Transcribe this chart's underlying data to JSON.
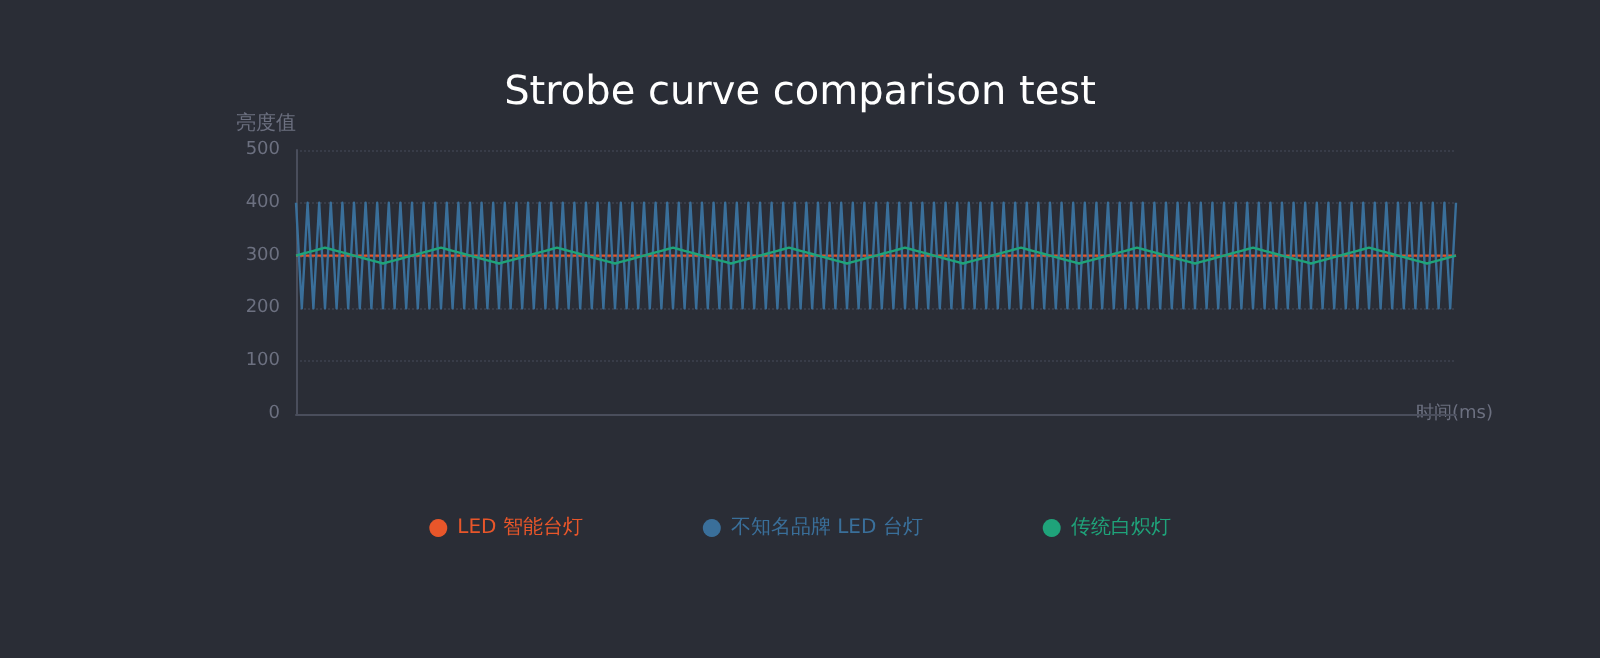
{
  "chart_data": {
    "type": "line",
    "title": "Strobe curve comparison test",
    "ylabel": "亮度值",
    "xlabel": "时间(ms)",
    "ylim": [
      0,
      500
    ],
    "yticks": [
      0,
      100,
      200,
      300,
      400,
      500
    ],
    "tick_labels": "y",
    "grid": "y",
    "legend": "bottom",
    "line_style": "solid",
    "categories": [
      null,
      null,
      null,
      null,
      null,
      null,
      null,
      null,
      null,
      null,
      null,
      null,
      null,
      null,
      null,
      null,
      null,
      null,
      null,
      null,
      null,
      null,
      null,
      null,
      null,
      null,
      null,
      null,
      null,
      null,
      null,
      null,
      null,
      null,
      null,
      null,
      null,
      null,
      null,
      null,
      null,
      null,
      null,
      null,
      null,
      null,
      null,
      null,
      null,
      null,
      null,
      null,
      null,
      null,
      null,
      null,
      null,
      null,
      null,
      null,
      null,
      null,
      null,
      null,
      null,
      null,
      null,
      null,
      null,
      null,
      null,
      null,
      null,
      null,
      null,
      null,
      null,
      null,
      null,
      null,
      null,
      null,
      null,
      null,
      null,
      null,
      null,
      null,
      null,
      null,
      null,
      null,
      null,
      null,
      null,
      null,
      null,
      null,
      null,
      null,
      null,
      null,
      null,
      null,
      null,
      null,
      null,
      null,
      null,
      null,
      null,
      null,
      null,
      null,
      null,
      null,
      null,
      null,
      null,
      null,
      null,
      null,
      null,
      null,
      null,
      null,
      null,
      null,
      null,
      null,
      null,
      null,
      null,
      null,
      null,
      null,
      null,
      null,
      null,
      null,
      null,
      null,
      null,
      null,
      null,
      null,
      null,
      null,
      null,
      null,
      null,
      null,
      null,
      null,
      null,
      null,
      null,
      null,
      null,
      null,
      null,
      null,
      null,
      null,
      null,
      null,
      null,
      null,
      null,
      null,
      null,
      null,
      null,
      null,
      null,
      null,
      null,
      null,
      null,
      null,
      null,
      null,
      null,
      null,
      null,
      null,
      null,
      null,
      null,
      null,
      null,
      null,
      null,
      null,
      null,
      null,
      null,
      null,
      null,
      null,
      null
    ],
    "series": [
      {
        "name": "LED 智能台灯",
        "color": "#e8562a",
        "values": [
          300,
          300,
          300,
          300,
          300,
          300,
          300,
          300,
          300,
          300,
          300,
          300,
          300,
          300,
          300,
          300,
          300,
          300,
          300,
          300,
          300,
          300,
          300,
          300,
          300,
          300,
          300,
          300,
          300,
          300,
          300,
          300,
          300,
          300,
          300,
          300,
          300,
          300,
          300,
          300,
          300,
          300,
          300,
          300,
          300,
          300,
          300,
          300,
          300,
          300,
          300,
          300,
          300,
          300,
          300,
          300,
          300,
          300,
          300,
          300,
          300,
          300,
          300,
          300,
          300,
          300,
          300,
          300,
          300,
          300,
          300,
          300,
          300,
          300,
          300,
          300,
          300,
          300,
          300,
          300,
          300,
          300,
          300,
          300,
          300,
          300,
          300,
          300,
          300,
          300,
          300,
          300,
          300,
          300,
          300,
          300,
          300,
          300,
          300,
          300,
          300,
          300,
          300,
          300,
          300,
          300,
          300,
          300,
          300,
          300,
          300,
          300,
          300,
          300,
          300,
          300,
          300,
          300,
          300,
          300,
          300,
          300,
          300,
          300,
          300,
          300,
          300,
          300,
          300,
          300,
          300,
          300,
          300,
          300,
          300,
          300,
          300,
          300,
          300,
          300,
          300,
          300,
          300,
          300,
          300,
          300,
          300,
          300,
          300,
          300,
          300,
          300,
          300,
          300,
          300,
          300,
          300,
          300,
          300,
          300,
          300,
          300,
          300,
          300,
          300,
          300,
          300,
          300,
          300,
          300,
          300,
          300,
          300,
          300,
          300,
          300,
          300,
          300,
          300,
          300,
          300,
          300,
          300,
          300,
          300,
          300,
          300,
          300,
          300,
          300,
          300,
          300,
          300,
          300,
          300,
          300,
          300,
          300,
          300,
          300,
          300
        ]
      },
      {
        "name": "不知名品牌 LED 台灯",
        "color": "#3a6f9a",
        "values": [
          400,
          200,
          400,
          200,
          400,
          200,
          400,
          200,
          400,
          200,
          400,
          200,
          400,
          200,
          400,
          200,
          400,
          200,
          400,
          200,
          400,
          200,
          400,
          200,
          400,
          200,
          400,
          200,
          400,
          200,
          400,
          200,
          400,
          200,
          400,
          200,
          400,
          200,
          400,
          200,
          400,
          200,
          400,
          200,
          400,
          200,
          400,
          200,
          400,
          200,
          400,
          200,
          400,
          200,
          400,
          200,
          400,
          200,
          400,
          200,
          400,
          200,
          400,
          200,
          400,
          200,
          400,
          200,
          400,
          200,
          400,
          200,
          400,
          200,
          400,
          200,
          400,
          200,
          400,
          200,
          400,
          200,
          400,
          200,
          400,
          200,
          400,
          200,
          400,
          200,
          400,
          200,
          400,
          200,
          400,
          200,
          400,
          200,
          400,
          200,
          400,
          200,
          400,
          200,
          400,
          200,
          400,
          200,
          400,
          200,
          400,
          200,
          400,
          200,
          400,
          200,
          400,
          200,
          400,
          200,
          400,
          200,
          400,
          200,
          400,
          200,
          400,
          200,
          400,
          200,
          400,
          200,
          400,
          200,
          400,
          200,
          400,
          200,
          400,
          200,
          400,
          200,
          400,
          200,
          400,
          200,
          400,
          200,
          400,
          200,
          400,
          200,
          400,
          200,
          400,
          200,
          400,
          200,
          400,
          200,
          400,
          200,
          400,
          200,
          400,
          200,
          400,
          200,
          400,
          200,
          400,
          200,
          400,
          200,
          400,
          200,
          400,
          200,
          400,
          200,
          400,
          200,
          400,
          200,
          400,
          200,
          400,
          200,
          400,
          200,
          400,
          200,
          400,
          200,
          400,
          200,
          400,
          200,
          400,
          200,
          400
        ]
      },
      {
        "name": "传统白炽灯",
        "color": "#1fa37a",
        "values": [
          300,
          303,
          306,
          309,
          312,
          315,
          312,
          309,
          306,
          303,
          300,
          297,
          294,
          291,
          288,
          285,
          288,
          291,
          294,
          297,
          300,
          303,
          306,
          309,
          312,
          315,
          312,
          309,
          306,
          303,
          300,
          297,
          294,
          291,
          288,
          285,
          288,
          291,
          294,
          297,
          300,
          303,
          306,
          309,
          312,
          315,
          312,
          309,
          306,
          303,
          300,
          297,
          294,
          291,
          288,
          285,
          288,
          291,
          294,
          297,
          300,
          303,
          306,
          309,
          312,
          315,
          312,
          309,
          306,
          303,
          300,
          297,
          294,
          291,
          288,
          285,
          288,
          291,
          294,
          297,
          300,
          303,
          306,
          309,
          312,
          315,
          312,
          309,
          306,
          303,
          300,
          297,
          294,
          291,
          288,
          285,
          288,
          291,
          294,
          297,
          300,
          303,
          306,
          309,
          312,
          315,
          312,
          309,
          306,
          303,
          300,
          297,
          294,
          291,
          288,
          285,
          288,
          291,
          294,
          297,
          300,
          303,
          306,
          309,
          312,
          315,
          312,
          309,
          306,
          303,
          300,
          297,
          294,
          291,
          288,
          285,
          288,
          291,
          294,
          297,
          300,
          303,
          306,
          309,
          312,
          315,
          312,
          309,
          306,
          303,
          300,
          297,
          294,
          291,
          288,
          285,
          288,
          291,
          294,
          297,
          300,
          303,
          306,
          309,
          312,
          315,
          312,
          309,
          306,
          303,
          300,
          297,
          294,
          291,
          288,
          285,
          288,
          291,
          294,
          297,
          300,
          303,
          306,
          309,
          312,
          315,
          312,
          309,
          306,
          303,
          300,
          297,
          294,
          291,
          288,
          285,
          288,
          291,
          294,
          297,
          300
        ]
      }
    ]
  }
}
